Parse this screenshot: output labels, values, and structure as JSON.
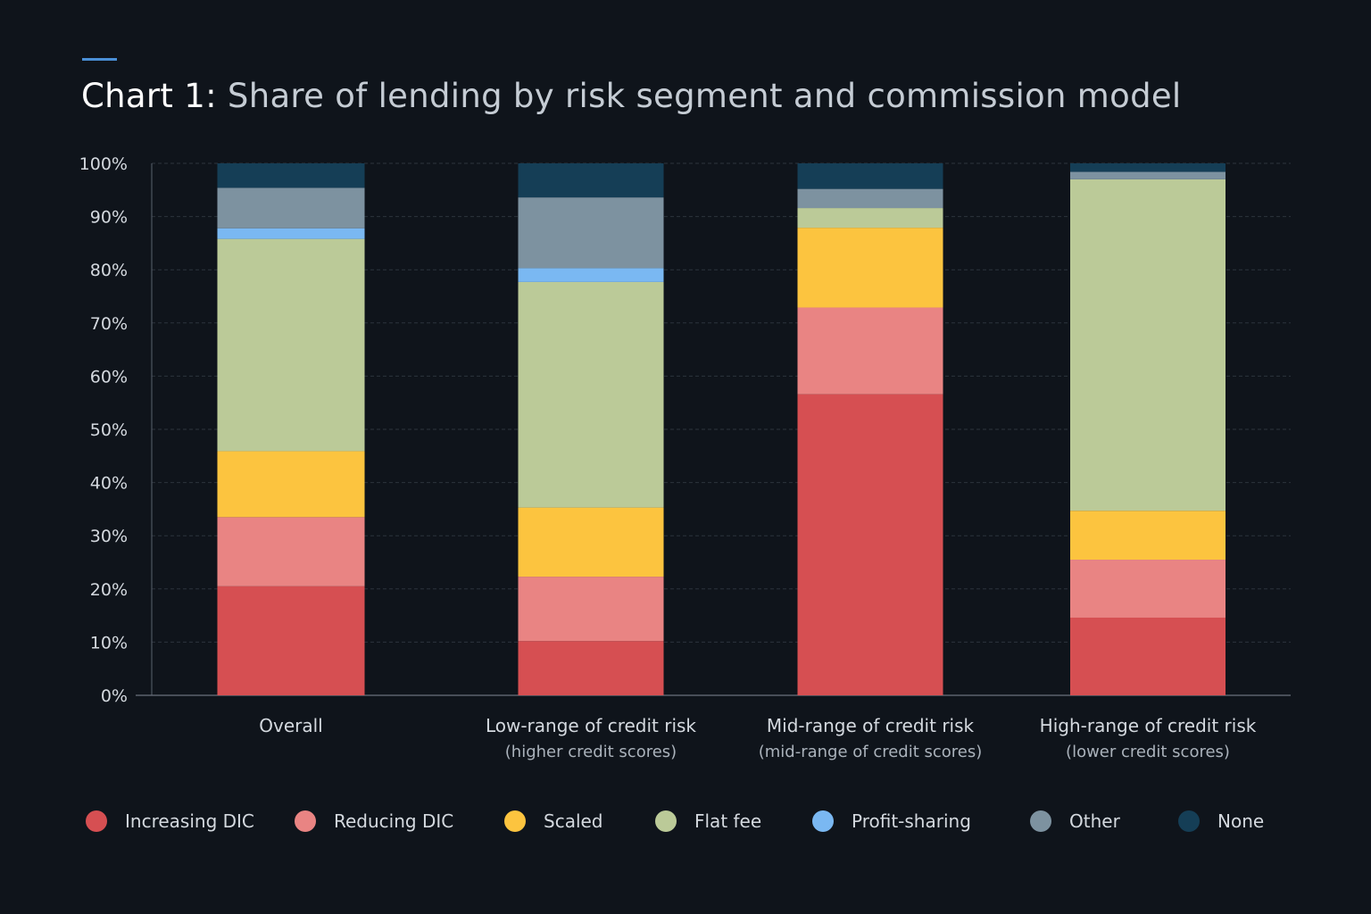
{
  "title": {
    "prefix": "Chart 1:",
    "text": "Share of lending by risk segment and commission model"
  },
  "colors": {
    "background": "#0f141b",
    "accent": "#4a8fd6",
    "grid": "#2c333d",
    "axis_text": "#d4d9df"
  },
  "chart_data": {
    "type": "bar",
    "stacked": true,
    "title": "Share of lending by risk segment and commission model",
    "xlabel": "",
    "ylabel": "",
    "ylim": [
      0,
      100
    ],
    "yticks": [
      "0%",
      "10%",
      "20%",
      "30%",
      "40%",
      "50%",
      "60%",
      "70%",
      "80%",
      "90%",
      "100%"
    ],
    "grid": true,
    "legend_position": "bottom",
    "categories": [
      {
        "line1": "Overall",
        "line2": ""
      },
      {
        "line1": "Low-range of credit risk",
        "line2": "(higher credit scores)"
      },
      {
        "line1": "Mid-range of credit risk",
        "line2": "(mid-range of credit scores)"
      },
      {
        "line1": "High-range of credit risk",
        "line2": "(lower credit scores)"
      }
    ],
    "series": [
      {
        "name": "Increasing DIC",
        "color": "#d64f52",
        "values": [
          20.5,
          10.2,
          56.6,
          14.6
        ]
      },
      {
        "name": "Reducing DIC",
        "color": "#e98483",
        "values": [
          13.0,
          12.1,
          16.3,
          10.9
        ]
      },
      {
        "name": "Scaled",
        "color": "#fcc43f",
        "values": [
          12.4,
          13.0,
          15.0,
          9.2
        ]
      },
      {
        "name": "Flat fee",
        "color": "#bbca98",
        "values": [
          39.9,
          42.4,
          3.7,
          62.3
        ]
      },
      {
        "name": "Profit-sharing",
        "color": "#7ab8f2",
        "values": [
          2.0,
          2.6,
          0.0,
          0.0
        ]
      },
      {
        "name": "Other",
        "color": "#7d92a0",
        "values": [
          7.6,
          13.3,
          3.6,
          1.4
        ]
      },
      {
        "name": "None",
        "color": "#153e56",
        "values": [
          4.6,
          6.4,
          4.8,
          1.6
        ]
      }
    ]
  }
}
